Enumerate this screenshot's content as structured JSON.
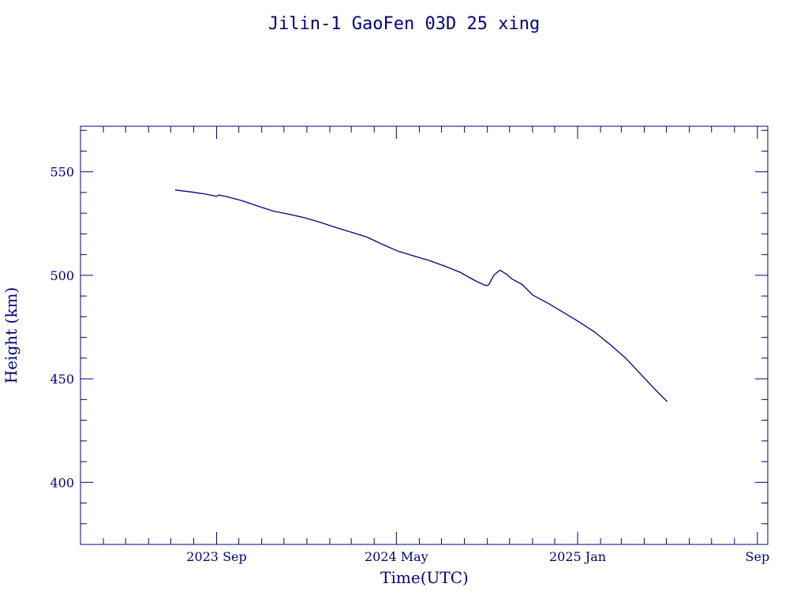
{
  "chart_data": {
    "type": "line",
    "title": "Jilin-1 GaoFen 03D 25 xing",
    "xlabel": "Time(UTC)",
    "ylabel": "Height (km)",
    "color": "#000080",
    "background": "#ffffff",
    "xlim": [
      "2023-03-01",
      "2025-09-15"
    ],
    "ylim": [
      370,
      572
    ],
    "grid": false,
    "x_ticks": [
      {
        "date": "2023-09-01",
        "label": "2023 Sep"
      },
      {
        "date": "2024-05-01",
        "label": "2024 May"
      },
      {
        "date": "2025-01-01",
        "label": "2025 Jan"
      },
      {
        "date": "2025-09-01",
        "label": "Sep"
      }
    ],
    "y_ticks": [
      {
        "value": 400,
        "label": "400"
      },
      {
        "value": 450,
        "label": "450"
      },
      {
        "value": 500,
        "label": "500"
      },
      {
        "value": 550,
        "label": "550"
      }
    ],
    "series": [
      {
        "x": [
          "2023-07-07",
          "2023-07-28",
          "2023-08-18",
          "2023-09-01",
          "2023-09-04",
          "2023-09-15",
          "2023-10-06",
          "2023-10-27",
          "2023-11-17",
          "2023-12-08",
          "2023-12-29",
          "2024-01-19",
          "2024-02-09",
          "2024-03-01",
          "2024-03-22",
          "2024-04-12",
          "2024-05-03",
          "2024-05-24",
          "2024-06-14",
          "2024-07-05",
          "2024-07-26",
          "2024-08-16",
          "2024-08-30",
          "2024-09-03",
          "2024-09-10",
          "2024-09-18",
          "2024-09-27",
          "2024-10-04",
          "2024-10-18",
          "2024-11-01",
          "2024-11-22",
          "2024-12-13",
          "2025-01-03",
          "2025-01-24",
          "2025-02-14",
          "2025-03-07",
          "2025-03-28",
          "2025-04-18",
          "2025-05-02"
        ],
        "y": [
          541.2,
          540.3,
          539.2,
          538.1,
          538.8,
          538.0,
          536.0,
          533.4,
          531.0,
          529.5,
          527.8,
          525.6,
          523.1,
          520.8,
          518.5,
          515.0,
          511.7,
          509.4,
          507.2,
          504.5,
          501.5,
          497.3,
          495.0,
          495.5,
          500.2,
          502.5,
          500.5,
          498.3,
          495.6,
          490.5,
          486.5,
          482.0,
          477.5,
          472.6,
          466.5,
          460.0,
          452.0,
          444.0,
          439.0
        ]
      }
    ]
  }
}
